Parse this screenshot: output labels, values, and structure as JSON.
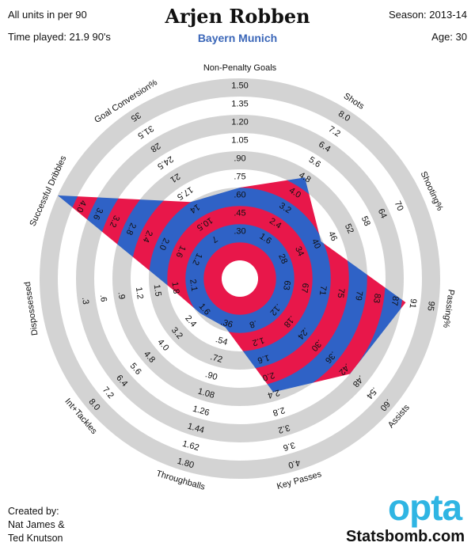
{
  "header": {
    "units_note": "All units in per 90",
    "time_played": "Time played: 21.9 90's",
    "player": "Arjen Robben",
    "team": "Bayern Munich",
    "season": "Season: 2013-14",
    "age": "Age: 30"
  },
  "colors": {
    "ring": "#d3d3d3",
    "fill_red": "#e8174a",
    "fill_blue": "#2f62c6",
    "team": "#3a66b8",
    "opta": "#2fb5e3"
  },
  "footer": {
    "created_by": "Created by:",
    "author1": "Nat James &",
    "author2": "Ted Knutson",
    "logo": "opta",
    "site": "Statsbomb.com"
  },
  "chart_data": {
    "type": "radar",
    "metrics": [
      {
        "name": "Non-Penalty Goals",
        "ticks": [
          ".30",
          ".45",
          ".60",
          ".75",
          ".90",
          "1.05",
          "1.20",
          "1.35",
          "1.50"
        ],
        "value": 0.6
      },
      {
        "name": "Shots",
        "ticks": [
          "1.6",
          "2.4",
          "3.2",
          "4.0",
          "4.8",
          "5.6",
          "6.4",
          "7.2",
          "8.0"
        ],
        "value": 4.5
      },
      {
        "name": "Shooting%",
        "ticks": [
          "28",
          "34",
          "40",
          "46",
          "52",
          "58",
          "64",
          "70"
        ],
        "value": 35
      },
      {
        "name": "Passing%",
        "ticks": [
          "63",
          "67",
          "71",
          "75",
          "79",
          "83",
          "87",
          "91",
          "95"
        ],
        "value": 83
      },
      {
        "name": "Assists",
        "ticks": [
          ".12",
          ".18",
          ".24",
          ".30",
          ".36",
          ".42",
          ".48",
          ".54",
          ".60"
        ],
        "value": 0.42
      },
      {
        "name": "Key Passes",
        "ticks": [
          ".8",
          "1.2",
          "1.6",
          "2.0",
          "2.4",
          "2.8",
          "3.2",
          "3.6",
          "4.0"
        ],
        "value": 2.2
      },
      {
        "name": "Throughballs",
        "ticks": [
          ".36",
          ".54",
          ".72",
          ".90",
          "1.08",
          "1.26",
          "1.44",
          "1.62",
          "1.80"
        ],
        "value": 0.32
      },
      {
        "name": "Int+Tackles",
        "ticks": [
          "1.6",
          "2.4",
          "3.2",
          "4.0",
          "4.8",
          "5.6",
          "6.4",
          "7.2",
          "8.0"
        ],
        "value": 1.5
      },
      {
        "name": "Dispossessed",
        "ticks": [
          "2.1",
          "1.8",
          "1.5",
          "1.2",
          ".9",
          ".6",
          ".3"
        ],
        "value": 2.4
      },
      {
        "name": "Successful Dribbles",
        "ticks": [
          "1.2",
          "1.6",
          "2.0",
          "2.4",
          "2.8",
          "3.2",
          "3.6",
          "4.0"
        ],
        "value": 4.1
      },
      {
        "name": "Goal Conversion%",
        "ticks": [
          "7",
          "10.5",
          "14",
          "17.5",
          "21",
          "24.5",
          "28",
          "31.5",
          "35"
        ],
        "value": 14
      }
    ],
    "scale_min_fraction": [
      0.2,
      0.2,
      0.3,
      0.2,
      0.2,
      0.2,
      0.2,
      0.2,
      0.3,
      0.3,
      0.2
    ],
    "value_fraction": [
      0.4,
      0.56,
      0.39,
      0.82,
      0.7,
      0.55,
      0.18,
      0.19,
      0.28,
      1.0,
      0.4
    ],
    "rings": 5
  }
}
